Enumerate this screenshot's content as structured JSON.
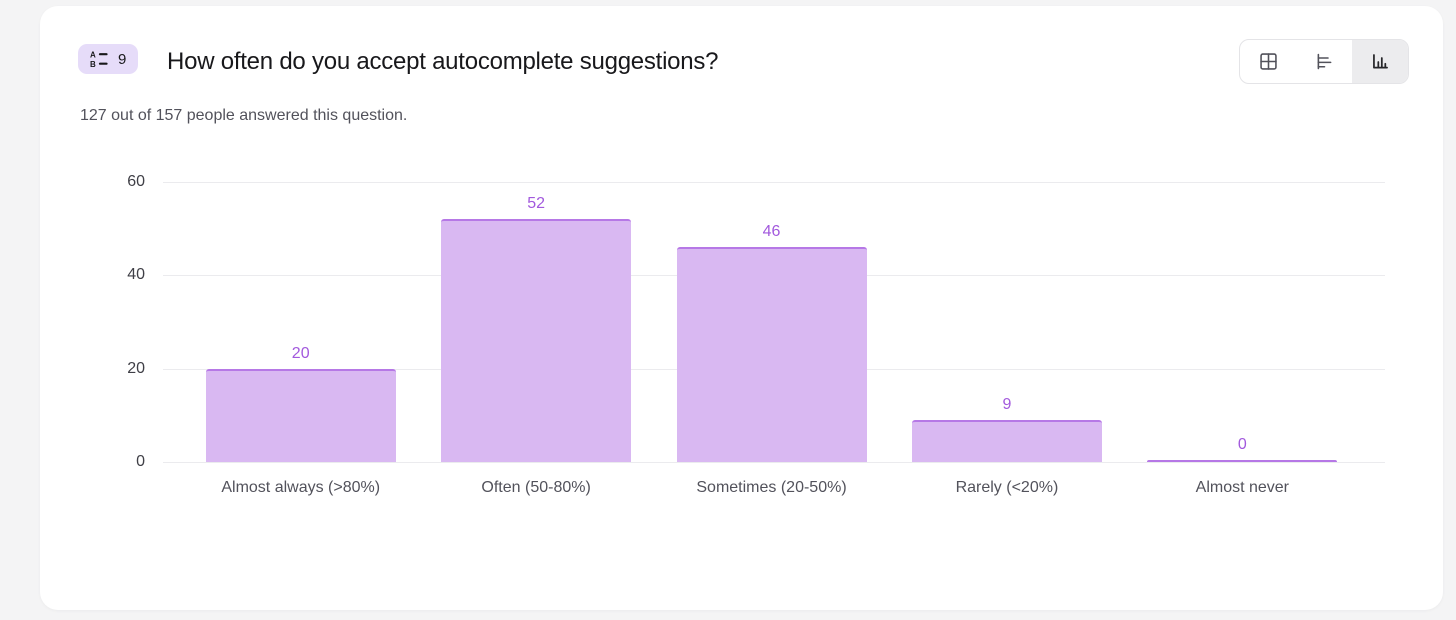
{
  "page": {
    "background": "#f4f4f5",
    "card_background": "#ffffff"
  },
  "header": {
    "badge": {
      "number": "9",
      "icon": "multiple-choice-icon",
      "bg": "#e6dcf9"
    },
    "title": "How often do you accept autocomplete suggestions?",
    "subtitle": "127 out of 157 people answered this question.",
    "answered": 127,
    "total": 157
  },
  "toolbar": {
    "views": [
      {
        "name": "table-view",
        "icon": "table-icon",
        "active": false
      },
      {
        "name": "horizontal-bar-view",
        "icon": "bar-chart-horizontal-icon",
        "active": false
      },
      {
        "name": "vertical-bar-view",
        "icon": "bar-chart-vertical-icon",
        "active": true
      }
    ]
  },
  "chart_data": {
    "type": "bar",
    "title": "How often do you accept autocomplete suggestions?",
    "categories": [
      "Almost always (>80%)",
      "Often (50-80%)",
      "Sometimes (20-50%)",
      "Rarely (<20%)",
      "Almost never"
    ],
    "values": [
      20,
      52,
      46,
      9,
      0
    ],
    "y_ticks": [
      60,
      40,
      20,
      0
    ],
    "ylim": [
      0,
      60
    ],
    "xlabel": "",
    "ylabel": "",
    "grid": true,
    "legend": "none",
    "bar_fill": "#d9b8f2",
    "bar_border": "#b678e6",
    "value_label_color": "#a259dd",
    "gridline_color": "#ebebee"
  }
}
